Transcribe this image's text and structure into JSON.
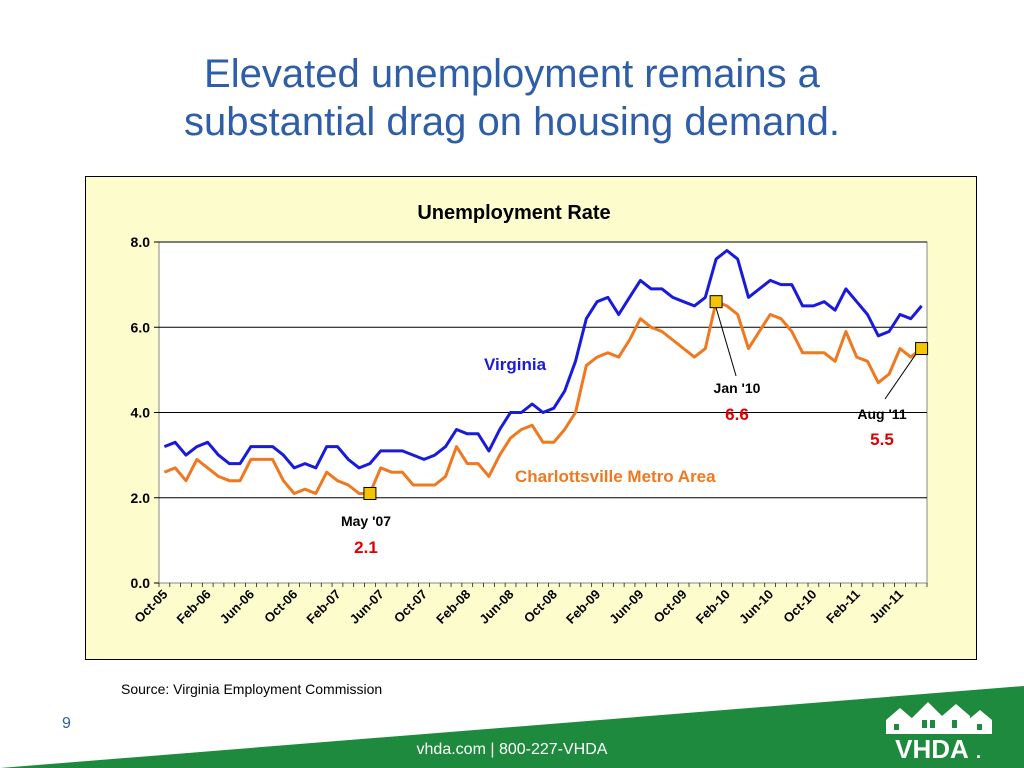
{
  "slide": {
    "title_line1": "Elevated unemployment remains a",
    "title_line2": "substantial drag on housing demand.",
    "source": "Source:  Virginia Employment Commission",
    "page_number": "9",
    "footer_text": "vhda.com | 800-227-VHDA",
    "logo_text": "VHDA",
    "logo_mark": ".",
    "colors": {
      "title": "#2e5ea8",
      "footer_green": "#1e8a3e",
      "plot_bg": "#fcfccc"
    }
  },
  "chart_data": {
    "type": "line",
    "title": "Unemployment Rate",
    "xlabel": "",
    "ylabel": "",
    "ylim": [
      0,
      8
    ],
    "yticks": [
      "0.0",
      "2.0",
      "4.0",
      "6.0",
      "8.0"
    ],
    "grid": true,
    "x_tick_labels": [
      "Oct-05",
      "Feb-06",
      "Jun-06",
      "Oct-06",
      "Feb-07",
      "Jun-07",
      "Oct-07",
      "Feb-08",
      "Jun-08",
      "Oct-08",
      "Feb-09",
      "Jun-09",
      "Oct-09",
      "Feb-10",
      "Jun-10",
      "Oct-10",
      "Feb-11",
      "Jun-11"
    ],
    "x_start": "Oct-05",
    "x_end": "Aug-11",
    "series": [
      {
        "name": "Virginia",
        "color": "#1a1adc",
        "values": [
          3.2,
          3.3,
          3.0,
          3.2,
          3.3,
          3.0,
          2.8,
          2.8,
          3.2,
          3.2,
          3.2,
          3.0,
          2.7,
          2.8,
          2.7,
          3.2,
          3.2,
          2.9,
          2.7,
          2.8,
          3.1,
          3.1,
          3.1,
          3.0,
          2.9,
          3.0,
          3.2,
          3.6,
          3.5,
          3.5,
          3.1,
          3.6,
          4.0,
          4.0,
          4.2,
          4.0,
          4.1,
          4.5,
          5.2,
          6.2,
          6.6,
          6.7,
          6.3,
          6.7,
          7.1,
          6.9,
          6.9,
          6.7,
          6.6,
          6.5,
          6.7,
          7.6,
          7.8,
          7.6,
          6.7,
          6.9,
          7.1,
          7.0,
          7.0,
          6.5,
          6.5,
          6.6,
          6.4,
          6.9,
          6.6,
          6.3,
          5.8,
          5.9,
          6.3,
          6.2,
          6.5
        ]
      },
      {
        "name": "Charlottsville Metro Area",
        "color": "#f07820",
        "values": [
          2.6,
          2.7,
          2.4,
          2.9,
          2.7,
          2.5,
          2.4,
          2.4,
          2.9,
          2.9,
          2.9,
          2.4,
          2.1,
          2.2,
          2.1,
          2.6,
          2.4,
          2.3,
          2.1,
          2.1,
          2.7,
          2.6,
          2.6,
          2.3,
          2.3,
          2.3,
          2.5,
          3.2,
          2.8,
          2.8,
          2.5,
          3.0,
          3.4,
          3.6,
          3.7,
          3.3,
          3.3,
          3.6,
          4.0,
          5.1,
          5.3,
          5.4,
          5.3,
          5.7,
          6.2,
          6.0,
          5.9,
          5.7,
          5.5,
          5.3,
          5.5,
          6.6,
          6.5,
          6.3,
          5.5,
          5.9,
          6.3,
          6.2,
          5.9,
          5.4,
          5.4,
          5.4,
          5.2,
          5.9,
          5.3,
          5.2,
          4.7,
          4.9,
          5.5,
          5.3,
          5.5
        ]
      }
    ],
    "annotations": [
      {
        "label": "May '07",
        "value": "2.1",
        "series": 1,
        "index": 19
      },
      {
        "label": "Jan '10",
        "value": "6.6",
        "series": 1,
        "index": 51
      },
      {
        "label": "Aug '11",
        "value": "5.5",
        "series": 1,
        "index": 70
      }
    ],
    "series_labels": [
      "Virginia",
      "Charlottsville Metro Area"
    ]
  }
}
